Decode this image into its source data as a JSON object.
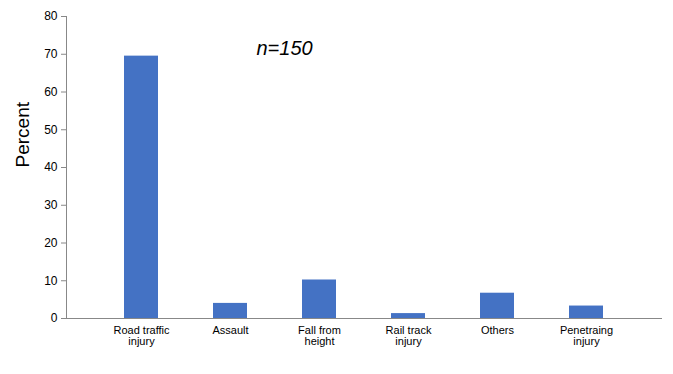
{
  "chart_data": {
    "type": "bar",
    "annotations": [
      "n=150"
    ],
    "y_label": "Percent",
    "categories": [
      "Road traffic injury",
      "Assault",
      "Fall from height",
      "Rail track injury",
      "Others",
      "Penetraing injury"
    ],
    "values": [
      69.5,
      4.0,
      10.2,
      1.3,
      6.7,
      3.3
    ],
    "color": "#4472c4",
    "ylim": [
      0,
      80
    ],
    "yticks": [
      0,
      10,
      20,
      30,
      40,
      50,
      60,
      70,
      80
    ],
    "grid": false
  }
}
